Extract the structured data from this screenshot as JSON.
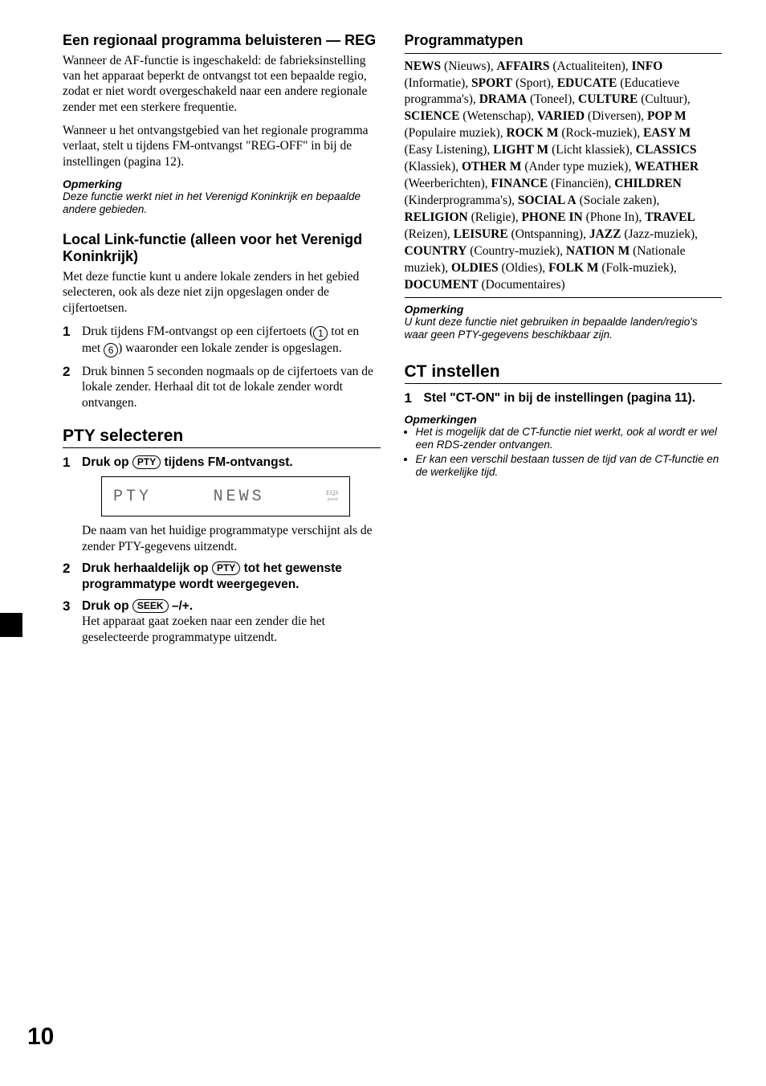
{
  "page_number": "10",
  "left": {
    "reg": {
      "title": "Een regionaal programma beluisteren — REG",
      "p1": "Wanneer de AF-functie is ingeschakeld: de fabrieksinstelling van het apparaat beperkt de ontvangst tot een bepaalde regio, zodat er niet wordt overgeschakeld naar een andere regionale zender met een sterkere frequentie.",
      "p2": "Wanneer u het ontvangstgebied van het regionale programma verlaat, stelt u tijdens FM-ontvangst \"REG-OFF\" in bij de instellingen (pagina 12).",
      "note_h": "Opmerking",
      "note": "Deze functie werkt niet in het Verenigd Koninkrijk en bepaalde andere gebieden."
    },
    "local": {
      "title": "Local Link-functie (alleen voor het Verenigd Koninkrijk)",
      "intro": "Met deze functie kunt u andere lokale zenders in het gebied selecteren, ook als deze niet zijn opgeslagen onder de cijfertoetsen.",
      "s1a": "Druk tijdens FM-ontvangst op een cijfertoets (",
      "s1b": " tot en met ",
      "s1c": ") waaronder een lokale zender is opgeslagen.",
      "key1": "1",
      "key6": "6",
      "s2": "Druk binnen 5 seconden nogmaals op de cijfertoets van de lokale zender. Herhaal dit tot de lokale zender wordt ontvangen."
    },
    "pty": {
      "title": "PTY selecteren",
      "s1a": "Druk op ",
      "s1b": " tijdens FM-ontvangst.",
      "btn_pty": "PTY",
      "display_left": "PTY",
      "display_center": "NEWS",
      "display_right1": "EQ3",
      "display_right2": "≡≡≡",
      "s1after": "De naam van het huidige programmatype verschijnt als de zender PTY-gegevens uitzendt.",
      "s2a": "Druk herhaaldelijk op ",
      "s2b": " tot het gewenste programmatype wordt weergegeven.",
      "s3a": "Druk op ",
      "btn_seek": "SEEK",
      "s3b": " –/+.",
      "s3after": "Het apparaat gaat zoeken naar een zender die het geselecteerde programmatype uitzendt."
    }
  },
  "right": {
    "pt": {
      "title": "Programmatypen"
    },
    "types": [
      {
        "k": "NEWS",
        "v": " (Nieuws), "
      },
      {
        "k": "AFFAIRS",
        "v": " (Actualiteiten), "
      },
      {
        "k": "INFO",
        "v": " (Informatie), "
      },
      {
        "k": "SPORT",
        "v": " (Sport), "
      },
      {
        "k": "EDUCATE",
        "v": " (Educatieve programma's), "
      },
      {
        "k": "DRAMA",
        "v": " (Toneel), "
      },
      {
        "k": "CULTURE",
        "v": " (Cultuur), "
      },
      {
        "k": "SCIENCE",
        "v": " (Wetenschap), "
      },
      {
        "k": "VARIED",
        "v": " (Diversen), "
      },
      {
        "k": "POP M",
        "v": " (Populaire muziek), "
      },
      {
        "k": "ROCK M",
        "v": " (Rock-muziek), "
      },
      {
        "k": "EASY M",
        "v": " (Easy Listening), "
      },
      {
        "k": "LIGHT M",
        "v": " (Licht klassiek), "
      },
      {
        "k": "CLASSICS",
        "v": " (Klassiek), "
      },
      {
        "k": "OTHER M",
        "v": " (Ander type muziek), "
      },
      {
        "k": "WEATHER",
        "v": " (Weerberichten), "
      },
      {
        "k": "FINANCE",
        "v": " (Financiën), "
      },
      {
        "k": "CHILDREN",
        "v": " (Kinderprogramma's), "
      },
      {
        "k": "SOCIAL A",
        "v": " (Sociale zaken), "
      },
      {
        "k": "RELIGION",
        "v": " (Religie), "
      },
      {
        "k": "PHONE IN",
        "v": " (Phone In), "
      },
      {
        "k": "TRAVEL",
        "v": " (Reizen), "
      },
      {
        "k": "LEISURE",
        "v": " (Ontspanning), "
      },
      {
        "k": "JAZZ",
        "v": " (Jazz-muziek), "
      },
      {
        "k": "COUNTRY",
        "v": " (Country-muziek), "
      },
      {
        "k": "NATION M",
        "v": " (Nationale muziek), "
      },
      {
        "k": "OLDIES",
        "v": " (Oldies), "
      },
      {
        "k": "FOLK M",
        "v": " (Folk-muziek), "
      },
      {
        "k": "DOCUMENT",
        "v": " (Documentaires)"
      }
    ],
    "note_h": "Opmerking",
    "note": "U kunt deze functie niet gebruiken in bepaalde landen/regio's waar geen PTY-gegevens beschikbaar zijn.",
    "ct": {
      "title": "CT instellen",
      "s1": "Stel \"CT-ON\" in bij de instellingen (pagina 11).",
      "notes_h": "Opmerkingen",
      "n1": "Het is mogelijk dat de CT-functie niet werkt, ook al wordt er wel een RDS-zender ontvangen.",
      "n2": "Er kan een verschil bestaan tussen de tijd van de CT-functie en de werkelijke tijd."
    }
  }
}
